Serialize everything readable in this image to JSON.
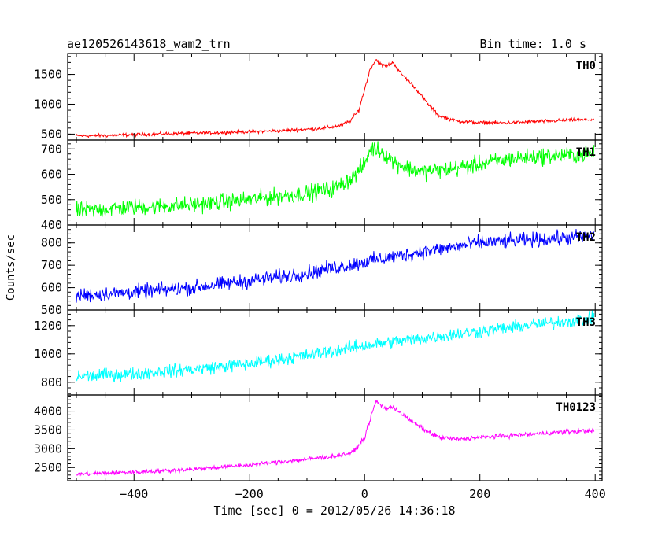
{
  "header": {
    "title": "ae120526143618_wam2_trn",
    "bin_time": "Bin time: 1.0 s"
  },
  "axes": {
    "ylabel": "Counts/sec",
    "xlabel": "Time [sec] 0 = 2012/05/26 14:36:18"
  },
  "chart_data": [
    {
      "type": "line",
      "series": [
        {
          "name": "TH0",
          "color": "#ff0000",
          "x": [
            -500,
            -450,
            -400,
            -350,
            -300,
            -250,
            -200,
            -150,
            -100,
            -60,
            -40,
            -25,
            -10,
            0,
            10,
            20,
            30,
            40,
            50,
            60,
            75,
            90,
            110,
            130,
            160,
            200,
            250,
            300,
            350,
            400
          ],
          "y": [
            470,
            475,
            490,
            505,
            515,
            525,
            540,
            555,
            580,
            610,
            650,
            720,
            900,
            1250,
            1600,
            1750,
            1650,
            1650,
            1700,
            1550,
            1400,
            1250,
            1000,
            800,
            720,
            690,
            690,
            710,
            730,
            745
          ]
        }
      ],
      "xlim": [
        -515,
        412
      ],
      "ylim": [
        400,
        1850
      ],
      "yticks": [
        500,
        1000,
        1500
      ],
      "noise": 22
    },
    {
      "type": "line",
      "series": [
        {
          "name": "TH1",
          "color": "#00ff00",
          "x": [
            -500,
            -400,
            -300,
            -200,
            -100,
            -50,
            -20,
            0,
            10,
            20,
            30,
            50,
            80,
            100,
            150,
            200,
            250,
            300,
            350,
            400
          ],
          "y": [
            455,
            470,
            480,
            500,
            525,
            545,
            590,
            640,
            700,
            700,
            690,
            650,
            620,
            610,
            620,
            640,
            660,
            670,
            675,
            680
          ]
        }
      ],
      "xlim": [
        -515,
        412
      ],
      "ylim": [
        400,
        735
      ],
      "yticks": [
        400,
        500,
        600,
        700
      ],
      "noise": 25
    },
    {
      "type": "line",
      "series": [
        {
          "name": "TH2",
          "color": "#0000ff",
          "x": [
            -500,
            -400,
            -300,
            -200,
            -100,
            0,
            100,
            200,
            300,
            400
          ],
          "y": [
            565,
            580,
            600,
            630,
            665,
            715,
            760,
            800,
            815,
            830
          ]
        }
      ],
      "xlim": [
        -515,
        412
      ],
      "ylim": [
        500,
        880
      ],
      "yticks": [
        500,
        600,
        700,
        800
      ],
      "noise": 25
    },
    {
      "type": "line",
      "series": [
        {
          "name": "TH3",
          "color": "#00ffff",
          "x": [
            -500,
            -400,
            -300,
            -200,
            -100,
            0,
            100,
            200,
            300,
            400
          ],
          "y": [
            840,
            860,
            890,
            930,
            990,
            1060,
            1110,
            1160,
            1210,
            1250
          ]
        }
      ],
      "xlim": [
        -515,
        412
      ],
      "ylim": [
        710,
        1310
      ],
      "yticks": [
        800,
        1000,
        1200
      ],
      "noise": 35
    },
    {
      "type": "line",
      "series": [
        {
          "name": "TH0123",
          "color": "#ff00ff",
          "x": [
            -500,
            -400,
            -300,
            -200,
            -100,
            -50,
            -20,
            0,
            10,
            20,
            30,
            40,
            50,
            70,
            90,
            110,
            130,
            160,
            200,
            250,
            300,
            350,
            400
          ],
          "y": [
            2320,
            2380,
            2450,
            2570,
            2720,
            2810,
            2900,
            3300,
            3800,
            4270,
            4130,
            4070,
            4120,
            3850,
            3650,
            3450,
            3300,
            3250,
            3300,
            3350,
            3400,
            3450,
            3490
          ]
        }
      ],
      "xlim": [
        -515,
        412
      ],
      "ylim": [
        2150,
        4430
      ],
      "yticks": [
        2500,
        3000,
        3500,
        4000
      ],
      "noise": 45
    }
  ],
  "xaxis": {
    "ticks": [
      -400,
      -200,
      0,
      200,
      400
    ],
    "tick_labels": [
      "−400",
      "−200",
      "0",
      "200",
      "400"
    ]
  }
}
